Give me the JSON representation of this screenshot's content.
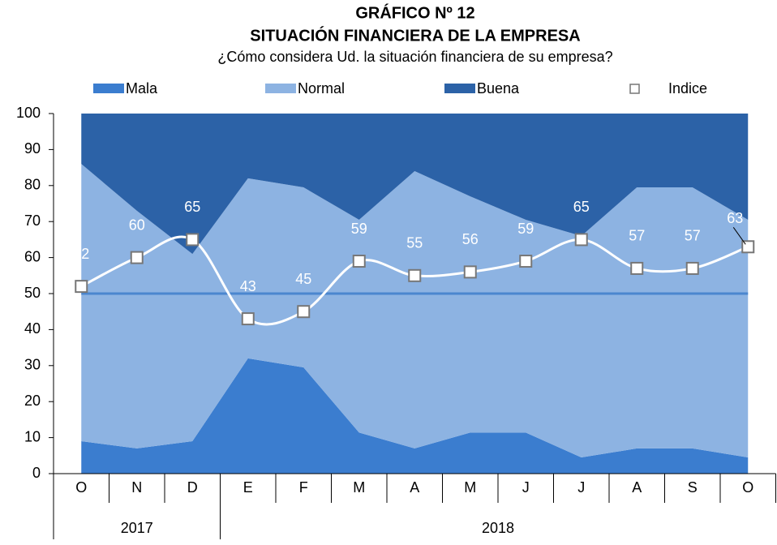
{
  "chart_data": {
    "type": "stacked-area-line",
    "title": "GRÁFICO Nº 12",
    "subtitle": "SITUACIÓN FINANCIERA DE LA EMPRESA",
    "question": "¿Cómo considera Ud. la situación financiera de su empresa?",
    "categories": [
      "O",
      "N",
      "D",
      "E",
      "F",
      "M",
      "A",
      "M",
      "J",
      "J",
      "A",
      "S",
      "O"
    ],
    "x_groups": [
      {
        "name": "2017",
        "start": 0,
        "end": 2
      },
      {
        "name": "2018",
        "start": 3,
        "end": 12
      }
    ],
    "series": [
      {
        "name": "Mala",
        "color": "#3b7dcf",
        "values": [
          9,
          7,
          9,
          32,
          29.5,
          11.4,
          7,
          11.4,
          11.4,
          4.5,
          7,
          7,
          4.5
        ]
      },
      {
        "name": "Normal",
        "color": "#8db3e2",
        "values": [
          77,
          66,
          52,
          50,
          50,
          59.1,
          77,
          65.6,
          59.1,
          61.5,
          72.5,
          72.5,
          66
        ]
      },
      {
        "name": "Buena",
        "color": "#2c62a7",
        "values": [
          14,
          27,
          39,
          18,
          20.5,
          29.5,
          16,
          23,
          29.5,
          34,
          20.5,
          20.5,
          29.5
        ]
      }
    ],
    "line": {
      "name": "Indice",
      "color": "#ffffff",
      "values": [
        52,
        60,
        65,
        43,
        45,
        59,
        55,
        56,
        59,
        65,
        57,
        57,
        63
      ]
    },
    "reference_line": 50,
    "ylim": [
      0,
      100
    ],
    "yticks": [
      0,
      10,
      20,
      30,
      40,
      50,
      60,
      70,
      80,
      90,
      100
    ]
  }
}
